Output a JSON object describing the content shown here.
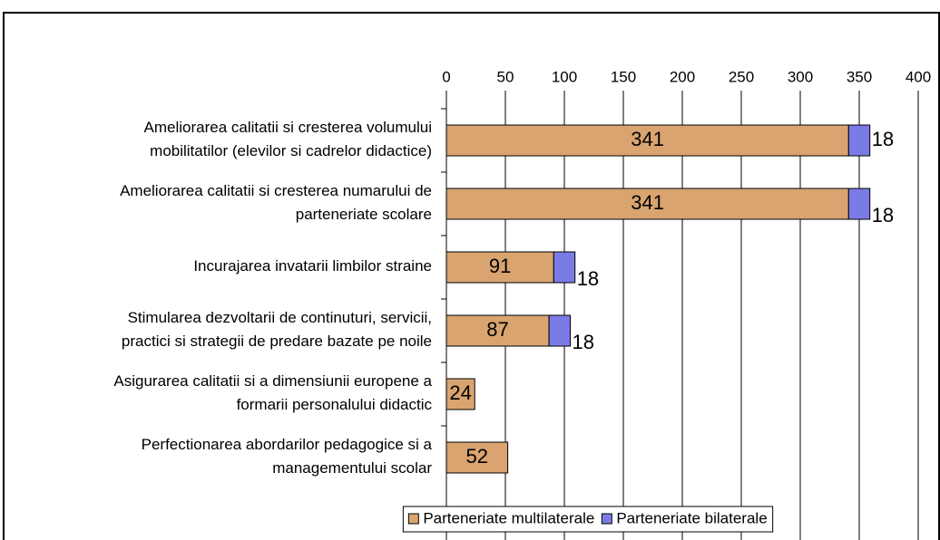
{
  "chart_data": {
    "type": "bar",
    "orientation": "horizontal",
    "stacked": true,
    "categories": [
      "Ameliorarea calitatii si cresterea volumului\nmobilitatilor (elevilor si cadrelor didactice)",
      "Ameliorarea calitatii si cresterea numarului de\nparteneriate scolare",
      "Incurajarea invatarii limbilor straine",
      "Stimularea dezvoltarii de continuturi, servicii,\npractici si strategii de predare bazate pe noile",
      "Asigurarea calitatii si a dimensiunii europene a\nformarii personalului didactic",
      "Perfectionarea abordarilor pedagogice si a\nmanagementului scolar"
    ],
    "series": [
      {
        "name": "Parteneriate multilaterale",
        "color": "#d9a470",
        "values": [
          341,
          341,
          91,
          87,
          24,
          52
        ]
      },
      {
        "name": "Parteneriate bilaterale",
        "color": "#7b7be6",
        "values": [
          18,
          18,
          18,
          18,
          null,
          null
        ]
      }
    ],
    "xlim": [
      0,
      400
    ],
    "xticks": [
      0,
      50,
      100,
      150,
      200,
      250,
      300,
      350,
      400
    ],
    "grid": true,
    "legend": "bottom"
  }
}
